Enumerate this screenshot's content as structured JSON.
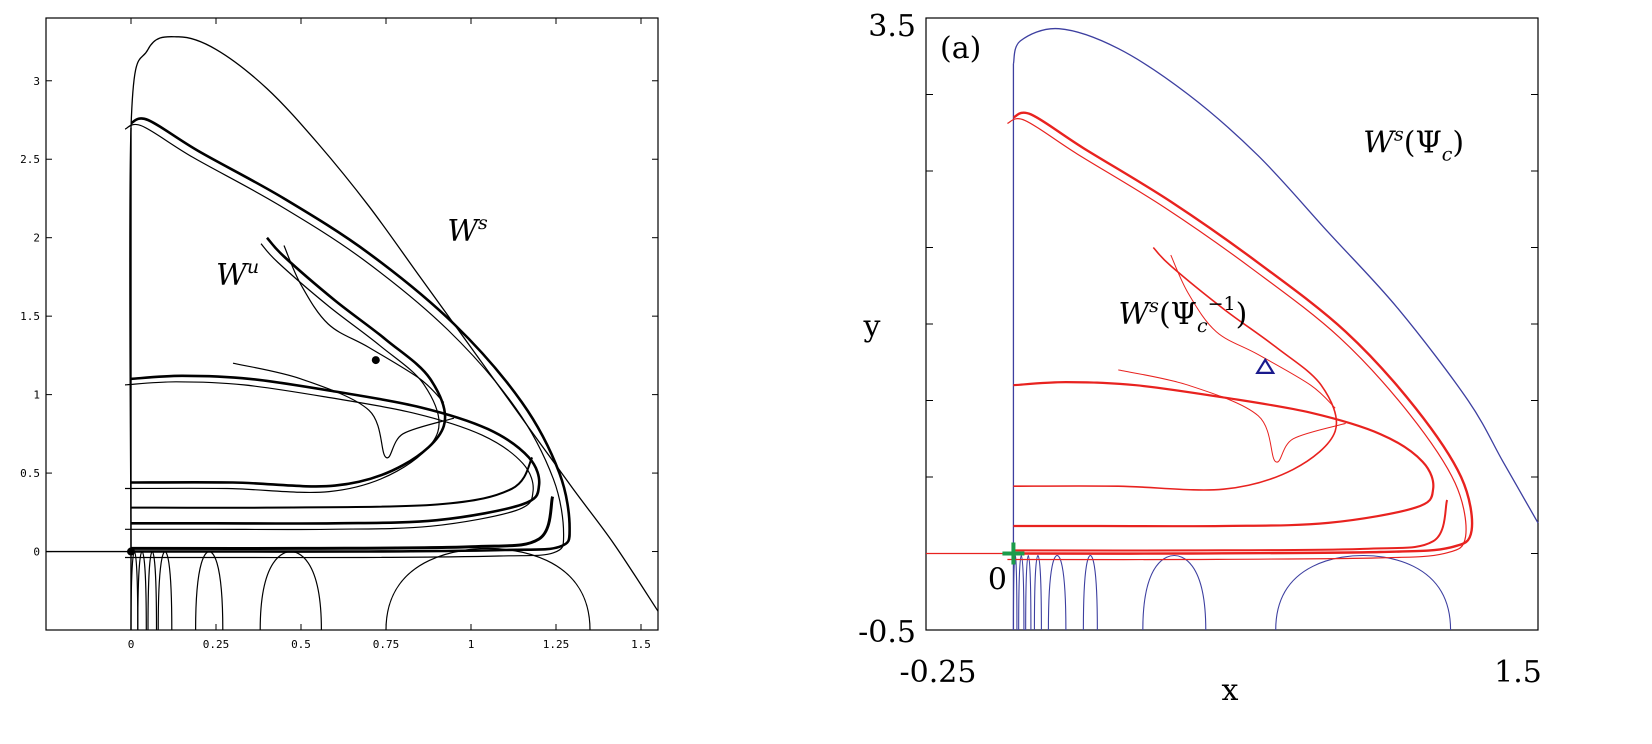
{
  "chart_data": [
    {
      "type": "line",
      "panel": "left",
      "xlim": [
        -0.25,
        1.55
      ],
      "ylim": [
        -0.5,
        3.4
      ],
      "x_ticks": [
        "0",
        "0.25",
        "0.5",
        "0.75",
        "1",
        "1.25",
        "1.5"
      ],
      "x_tick_values": [
        0,
        0.25,
        0.5,
        0.75,
        1,
        1.25,
        1.5
      ],
      "y_ticks": [
        "0",
        "0.5",
        "1",
        "1.5",
        "2",
        "2.5",
        "3"
      ],
      "y_tick_values": [
        0,
        0.5,
        1,
        1.5,
        2,
        2.5,
        3
      ],
      "annotations": [
        {
          "text": "W",
          "sup": "u",
          "x": 0.25,
          "y": 1.7
        },
        {
          "text": "W",
          "sup": "s",
          "x": 0.93,
          "y": 1.98
        }
      ],
      "fixed_points": [
        {
          "x": 0.0,
          "y": 0.0
        },
        {
          "x": 0.72,
          "y": 1.22
        }
      ],
      "series": [
        {
          "role": "stable-manifold",
          "color": "#000000",
          "x": [
            0.0,
            0.0,
            0.05,
            0.14,
            0.25,
            0.4,
            0.55,
            0.7,
            0.85,
            1.0,
            1.15,
            1.3,
            1.42,
            1.55
          ],
          "y": [
            0.0,
            2.7,
            3.2,
            3.28,
            3.2,
            2.95,
            2.6,
            2.2,
            1.75,
            1.3,
            0.85,
            0.4,
            0.05,
            -0.38
          ]
        },
        {
          "role": "unstable-manifold",
          "color": "#000000",
          "x": [
            0.0,
            0.05,
            0.2,
            0.45,
            0.7,
            0.95,
            1.15,
            1.26,
            1.29,
            1.26,
            1.1,
            0.7,
            0.35,
            0.0
          ],
          "y": [
            2.73,
            2.75,
            2.55,
            2.25,
            1.9,
            1.45,
            0.95,
            0.5,
            0.15,
            0.03,
            0.01,
            0.0,
            0.0,
            0.0
          ]
        },
        {
          "role": "unstable-manifold-lobe",
          "color": "#000000",
          "x": [
            0.0,
            0.15,
            0.35,
            0.6,
            0.85,
            1.05,
            1.17,
            1.2,
            1.15,
            0.9,
            0.6,
            0.25,
            0.0
          ],
          "y": [
            1.1,
            1.12,
            1.1,
            1.02,
            0.92,
            0.78,
            0.6,
            0.42,
            0.3,
            0.2,
            0.18,
            0.18,
            0.18
          ]
        },
        {
          "role": "unstable-manifold-lobe",
          "color": "#000000",
          "x": [
            0.0,
            0.3,
            0.6,
            0.8,
            0.92,
            0.88,
            0.75,
            0.6,
            0.45,
            0.4
          ],
          "y": [
            0.44,
            0.44,
            0.42,
            0.55,
            0.8,
            1.1,
            1.35,
            1.6,
            1.88,
            2.0
          ]
        },
        {
          "role": "stable-branch",
          "color": "#000000",
          "x": [
            0.02,
            0.05,
            0.08,
            0.12,
            0.16,
            0.2,
            0.23,
            0.26,
            0.35,
            0.45,
            0.5,
            0.55,
            0.7,
            0.78,
            0.85,
            0.95,
            1.05,
            1.15,
            1.25,
            1.35
          ],
          "y": [
            -0.5,
            -0.5,
            -0.5,
            0.0,
            -0.5,
            -0.5,
            0.0,
            -0.5,
            -0.5,
            0.0,
            -0.5,
            -0.5,
            -0.5,
            -0.2,
            0.0,
            0.02,
            -0.05,
            -0.15,
            -0.3,
            -0.5
          ]
        }
      ]
    },
    {
      "type": "line",
      "panel": "right",
      "panel_label": "(a)",
      "xlabel": "x",
      "ylabel": "y",
      "xlim": [
        -0.25,
        1.5
      ],
      "ylim": [
        -0.5,
        3.5
      ],
      "x_tick_labels": [
        "-0.25",
        "1.5"
      ],
      "y_tick_labels": [
        "-0.5",
        "3.5"
      ],
      "origin_label": "0",
      "colors": {
        "stable": "#3d3fa0",
        "unstable": "#e8221f",
        "origin": "#1b9c4a",
        "triangle": "#1a1a8c"
      },
      "annotations": [
        {
          "text": "W",
          "sup": "s",
          "arg": "(Ψ",
          "sub": "c",
          "sup2": "",
          "tail": ")",
          "x": 1.0,
          "y": 2.62
        },
        {
          "text": "W",
          "sup": "s",
          "arg": "(Ψ",
          "sub": "c",
          "sup2": "−1",
          "tail": ")",
          "x": 0.3,
          "y": 1.5
        }
      ],
      "markers": [
        {
          "shape": "plus",
          "x": 0.0,
          "y": 0.0
        },
        {
          "shape": "triangle",
          "x": 0.72,
          "y": 1.22
        }
      ]
    }
  ]
}
